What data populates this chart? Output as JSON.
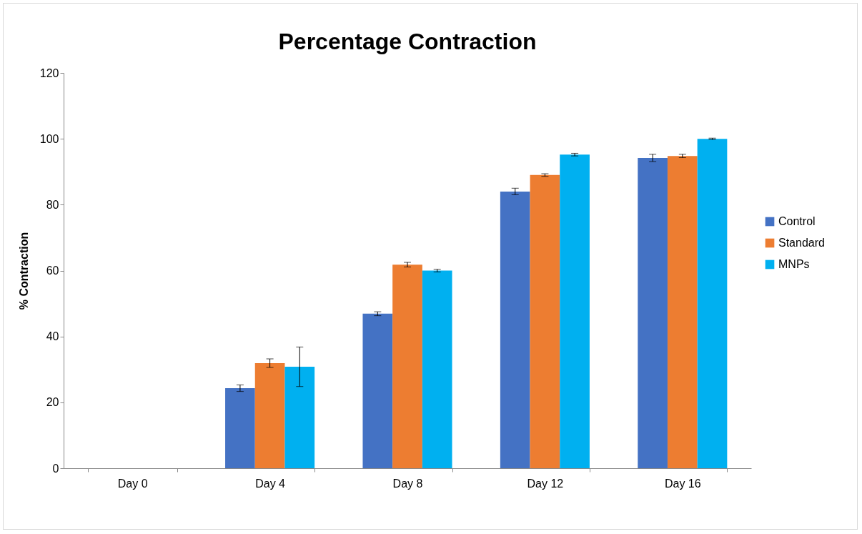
{
  "chart_data": {
    "type": "bar",
    "title": "Percentage Contraction",
    "ylabel": "% Contraction",
    "categories": [
      "Day 0",
      "Day 4",
      "Day 8",
      "Day 12",
      "Day 16"
    ],
    "series": [
      {
        "name": "Control",
        "color": "#4472c4",
        "values": [
          0,
          24.3,
          46.9,
          84,
          94.2
        ],
        "errors": [
          null,
          1,
          0.6,
          1,
          1.1
        ]
      },
      {
        "name": "Standard",
        "color": "#ed7d31",
        "values": [
          0,
          31.9,
          61.8,
          89,
          94.8
        ],
        "errors": [
          null,
          1.3,
          0.7,
          0.4,
          0.5
        ]
      },
      {
        "name": "MNPs",
        "color": "#00b0f0",
        "values": [
          0,
          30.8,
          60,
          95.2,
          100
        ],
        "errors": [
          null,
          6,
          0.4,
          0.4,
          0.2
        ]
      }
    ],
    "ylim": [
      0,
      120
    ],
    "yticks": [
      0,
      20,
      40,
      60,
      80,
      100,
      120
    ],
    "grid": false,
    "legend": "right"
  }
}
